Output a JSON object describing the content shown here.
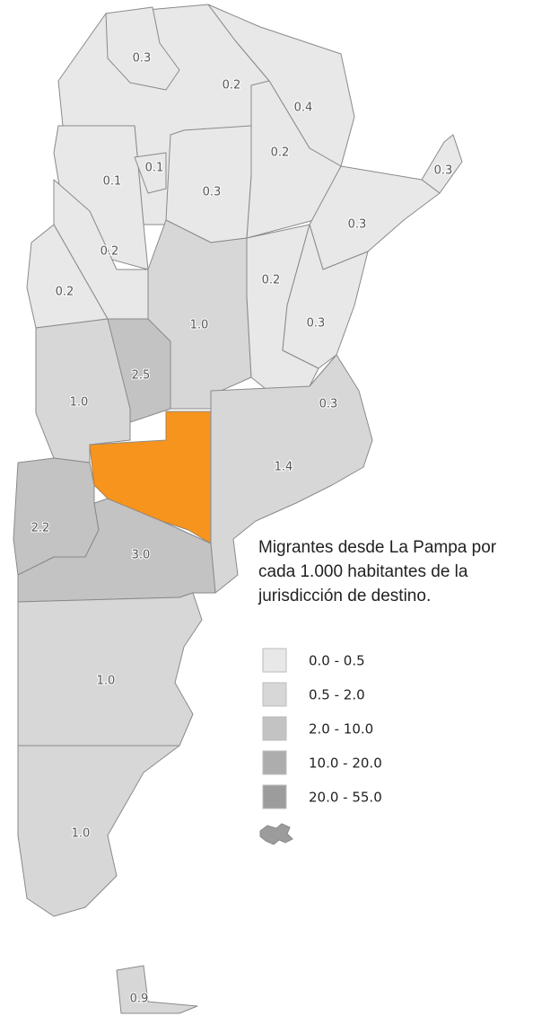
{
  "map": {
    "legend_title": [
      "Migrantes desde La Pampa por",
      "cada 1.000 habitantes de la",
      "jurisdicción de destino."
    ],
    "legend": [
      {
        "label": "0.0 - 0.5",
        "color": "#e8e8e8"
      },
      {
        "label": "0.5 - 2.0",
        "color": "#d7d7d7"
      },
      {
        "label": "2.0 - 10.0",
        "color": "#c3c3c3"
      },
      {
        "label": "10.0 - 20.0",
        "color": "#adadad"
      },
      {
        "label": "20.0 - 55.0",
        "color": "#9c9c9c"
      }
    ],
    "regions": [
      {
        "label": "0.3",
        "color": "#e8e8e8"
      },
      {
        "label": "0.2",
        "color": "#e8e8e8"
      },
      {
        "label": "0.4",
        "color": "#e8e8e8"
      },
      {
        "label": "0.2",
        "color": "#e8e8e8"
      },
      {
        "label": "0.3",
        "color": "#e8e8e8"
      },
      {
        "label": "0.1",
        "color": "#e8e8e8"
      },
      {
        "label": "0.1",
        "color": "#e8e8e8"
      },
      {
        "label": "0.3",
        "color": "#e8e8e8"
      },
      {
        "label": "0.3",
        "color": "#e8e8e8"
      },
      {
        "label": "0.2",
        "color": "#e8e8e8"
      },
      {
        "label": "0.2",
        "color": "#e8e8e8"
      },
      {
        "label": "1.0",
        "color": "#d7d7d7"
      },
      {
        "label": "0.2",
        "color": "#e8e8e8"
      },
      {
        "label": "0.3",
        "color": "#e8e8e8"
      },
      {
        "label": "0.3",
        "color": "#e8e8e8"
      },
      {
        "label": "2.5",
        "color": "#c3c3c3"
      },
      {
        "label": "1.0",
        "color": "#d7d7d7"
      },
      {
        "label": "1.4",
        "color": "#d7d7d7"
      },
      {
        "color": "#f7941d"
      },
      {
        "label": "2.2",
        "color": "#c3c3c3"
      },
      {
        "label": "3.0",
        "color": "#c3c3c3"
      },
      {
        "label": "1.0",
        "color": "#d7d7d7"
      },
      {
        "label": "1.0",
        "color": "#d7d7d7"
      },
      {
        "label": "0.9",
        "color": "#d7d7d7"
      }
    ]
  }
}
